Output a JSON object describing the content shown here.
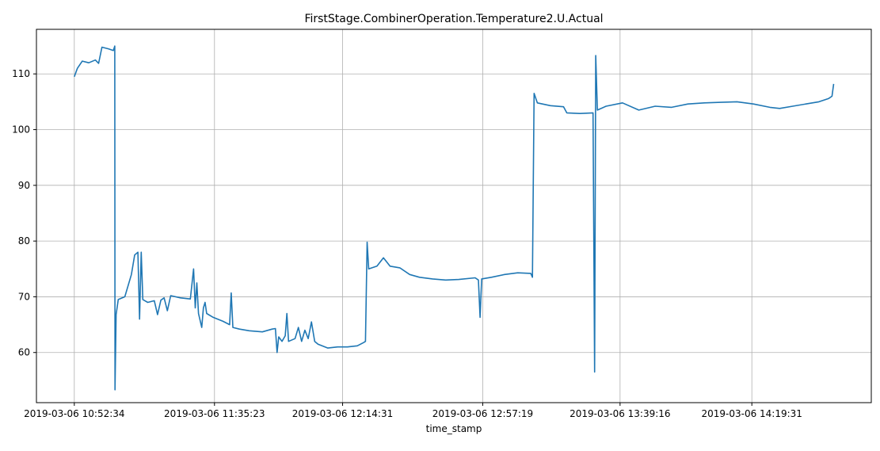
{
  "chart_data": {
    "type": "line",
    "title": "FirstStage.CombinerOperation.Temperature2.U.Actual",
    "xlabel": "time_stamp",
    "ylabel": "",
    "x_ticks": [
      "2019-03-06 10:52:34",
      "2019-03-06 11:35:23",
      "2019-03-06 12:14:31",
      "2019-03-06 12:57:19",
      "2019-03-06 13:39:16",
      "2019-03-06 14:19:31"
    ],
    "y_ticks": [
      60,
      70,
      80,
      90,
      100,
      110
    ],
    "xlim": [
      "2019-03-06 10:41:00",
      "2019-03-06 14:56:00"
    ],
    "ylim": [
      51,
      118
    ],
    "grid": true,
    "color": "#1f77b4",
    "series": [
      {
        "points": [
          [
            "2019-03-06 10:52:34",
            109.5
          ],
          [
            "2019-03-06 10:53:30",
            111.0
          ],
          [
            "2019-03-06 10:55:00",
            112.3
          ],
          [
            "2019-03-06 10:57:00",
            112.0
          ],
          [
            "2019-03-06 10:59:00",
            112.5
          ],
          [
            "2019-03-06 11:00:00",
            111.9
          ],
          [
            "2019-03-06 11:01:00",
            114.8
          ],
          [
            "2019-03-06 11:03:00",
            114.5
          ],
          [
            "2019-03-06 11:04:30",
            114.2
          ],
          [
            "2019-03-06 11:04:55",
            115.0
          ],
          [
            "2019-03-06 11:05:00",
            53.3
          ],
          [
            "2019-03-06 11:05:20",
            66.8
          ],
          [
            "2019-03-06 11:06:00",
            69.5
          ],
          [
            "2019-03-06 11:08:00",
            70.0
          ],
          [
            "2019-03-06 11:10:00",
            74.0
          ],
          [
            "2019-03-06 11:11:00",
            77.5
          ],
          [
            "2019-03-06 11:12:00",
            78.0
          ],
          [
            "2019-03-06 11:12:30",
            66.0
          ],
          [
            "2019-03-06 11:13:00",
            78.0
          ],
          [
            "2019-03-06 11:13:30",
            69.5
          ],
          [
            "2019-03-06 11:15:00",
            69.0
          ],
          [
            "2019-03-06 11:17:00",
            69.3
          ],
          [
            "2019-03-06 11:18:00",
            66.8
          ],
          [
            "2019-03-06 11:19:00",
            69.4
          ],
          [
            "2019-03-06 11:20:00",
            69.8
          ],
          [
            "2019-03-06 11:21:00",
            67.5
          ],
          [
            "2019-03-06 11:22:00",
            70.2
          ],
          [
            "2019-03-06 11:25:00",
            69.8
          ],
          [
            "2019-03-06 11:28:00",
            69.6
          ],
          [
            "2019-03-06 11:29:00",
            75.0
          ],
          [
            "2019-03-06 11:29:30",
            68.0
          ],
          [
            "2019-03-06 11:30:00",
            72.5
          ],
          [
            "2019-03-06 11:30:30",
            67.0
          ],
          [
            "2019-03-06 11:31:30",
            64.5
          ],
          [
            "2019-03-06 11:32:00",
            68.0
          ],
          [
            "2019-03-06 11:32:30",
            69.0
          ],
          [
            "2019-03-06 11:33:00",
            67.0
          ],
          [
            "2019-03-06 11:35:00",
            66.3
          ],
          [
            "2019-03-06 11:38:00",
            65.6
          ],
          [
            "2019-03-06 11:40:00",
            65.0
          ],
          [
            "2019-03-06 11:40:30",
            70.7
          ],
          [
            "2019-03-06 11:41:00",
            64.5
          ],
          [
            "2019-03-06 11:43:00",
            64.2
          ],
          [
            "2019-03-06 11:46:00",
            63.9
          ],
          [
            "2019-03-06 11:50:00",
            63.7
          ],
          [
            "2019-03-06 11:53:00",
            64.2
          ],
          [
            "2019-03-06 11:54:00",
            64.3
          ],
          [
            "2019-03-06 11:54:30",
            60.0
          ],
          [
            "2019-03-06 11:55:00",
            62.8
          ],
          [
            "2019-03-06 11:56:00",
            62.0
          ],
          [
            "2019-03-06 11:57:00",
            63.0
          ],
          [
            "2019-03-06 11:57:30",
            67.0
          ],
          [
            "2019-03-06 11:58:00",
            62.0
          ],
          [
            "2019-03-06 12:00:00",
            62.5
          ],
          [
            "2019-03-06 12:01:00",
            64.5
          ],
          [
            "2019-03-06 12:02:00",
            62.0
          ],
          [
            "2019-03-06 12:03:00",
            64.0
          ],
          [
            "2019-03-06 12:04:00",
            62.5
          ],
          [
            "2019-03-06 12:05:00",
            65.5
          ],
          [
            "2019-03-06 12:06:00",
            62.0
          ],
          [
            "2019-03-06 12:07:00",
            61.5
          ],
          [
            "2019-03-06 12:10:00",
            60.8
          ],
          [
            "2019-03-06 12:13:00",
            61.0
          ],
          [
            "2019-03-06 12:16:00",
            61.0
          ],
          [
            "2019-03-06 12:19:00",
            61.2
          ],
          [
            "2019-03-06 12:21:00",
            61.8
          ],
          [
            "2019-03-06 12:21:30",
            62.0
          ],
          [
            "2019-03-06 12:22:00",
            79.8
          ],
          [
            "2019-03-06 12:22:30",
            75.0
          ],
          [
            "2019-03-06 12:25:00",
            75.5
          ],
          [
            "2019-03-06 12:27:00",
            77.0
          ],
          [
            "2019-03-06 12:29:00",
            75.5
          ],
          [
            "2019-03-06 12:32:00",
            75.2
          ],
          [
            "2019-03-06 12:35:00",
            74.0
          ],
          [
            "2019-03-06 12:38:00",
            73.5
          ],
          [
            "2019-03-06 12:42:00",
            73.2
          ],
          [
            "2019-03-06 12:46:00",
            73.0
          ],
          [
            "2019-03-06 12:50:00",
            73.1
          ],
          [
            "2019-03-06 12:55:00",
            73.4
          ],
          [
            "2019-03-06 12:56:00",
            73.0
          ],
          [
            "2019-03-06 12:56:30",
            66.3
          ],
          [
            "2019-03-06 12:57:00",
            73.2
          ],
          [
            "2019-03-06 13:00:00",
            73.5
          ],
          [
            "2019-03-06 13:04:00",
            74.0
          ],
          [
            "2019-03-06 13:08:00",
            74.3
          ],
          [
            "2019-03-06 13:12:00",
            74.2
          ],
          [
            "2019-03-06 13:12:30",
            73.5
          ],
          [
            "2019-03-06 13:13:00",
            106.5
          ],
          [
            "2019-03-06 13:14:00",
            104.8
          ],
          [
            "2019-03-06 13:18:00",
            104.3
          ],
          [
            "2019-03-06 13:22:00",
            104.1
          ],
          [
            "2019-03-06 13:23:00",
            103.0
          ],
          [
            "2019-03-06 13:27:00",
            102.9
          ],
          [
            "2019-03-06 13:31:00",
            103.0
          ],
          [
            "2019-03-06 13:31:30",
            56.5
          ],
          [
            "2019-03-06 13:31:50",
            113.3
          ],
          [
            "2019-03-06 13:32:20",
            103.5
          ],
          [
            "2019-03-06 13:35:00",
            104.2
          ],
          [
            "2019-03-06 13:40:00",
            104.8
          ],
          [
            "2019-03-06 13:45:00",
            103.5
          ],
          [
            "2019-03-06 13:50:00",
            104.2
          ],
          [
            "2019-03-06 13:55:00",
            104.0
          ],
          [
            "2019-03-06 14:00:00",
            104.6
          ],
          [
            "2019-03-06 14:05:00",
            104.8
          ],
          [
            "2019-03-06 14:10:00",
            104.9
          ],
          [
            "2019-03-06 14:15:00",
            105.0
          ],
          [
            "2019-03-06 14:20:00",
            104.6
          ],
          [
            "2019-03-06 14:25:00",
            104.0
          ],
          [
            "2019-03-06 14:28:00",
            103.8
          ],
          [
            "2019-03-06 14:32:00",
            104.2
          ],
          [
            "2019-03-06 14:36:00",
            104.6
          ],
          [
            "2019-03-06 14:40:00",
            105.0
          ],
          [
            "2019-03-06 14:43:00",
            105.6
          ],
          [
            "2019-03-06 14:44:00",
            106.0
          ],
          [
            "2019-03-06 14:44:30",
            108.2
          ]
        ]
      }
    ]
  }
}
